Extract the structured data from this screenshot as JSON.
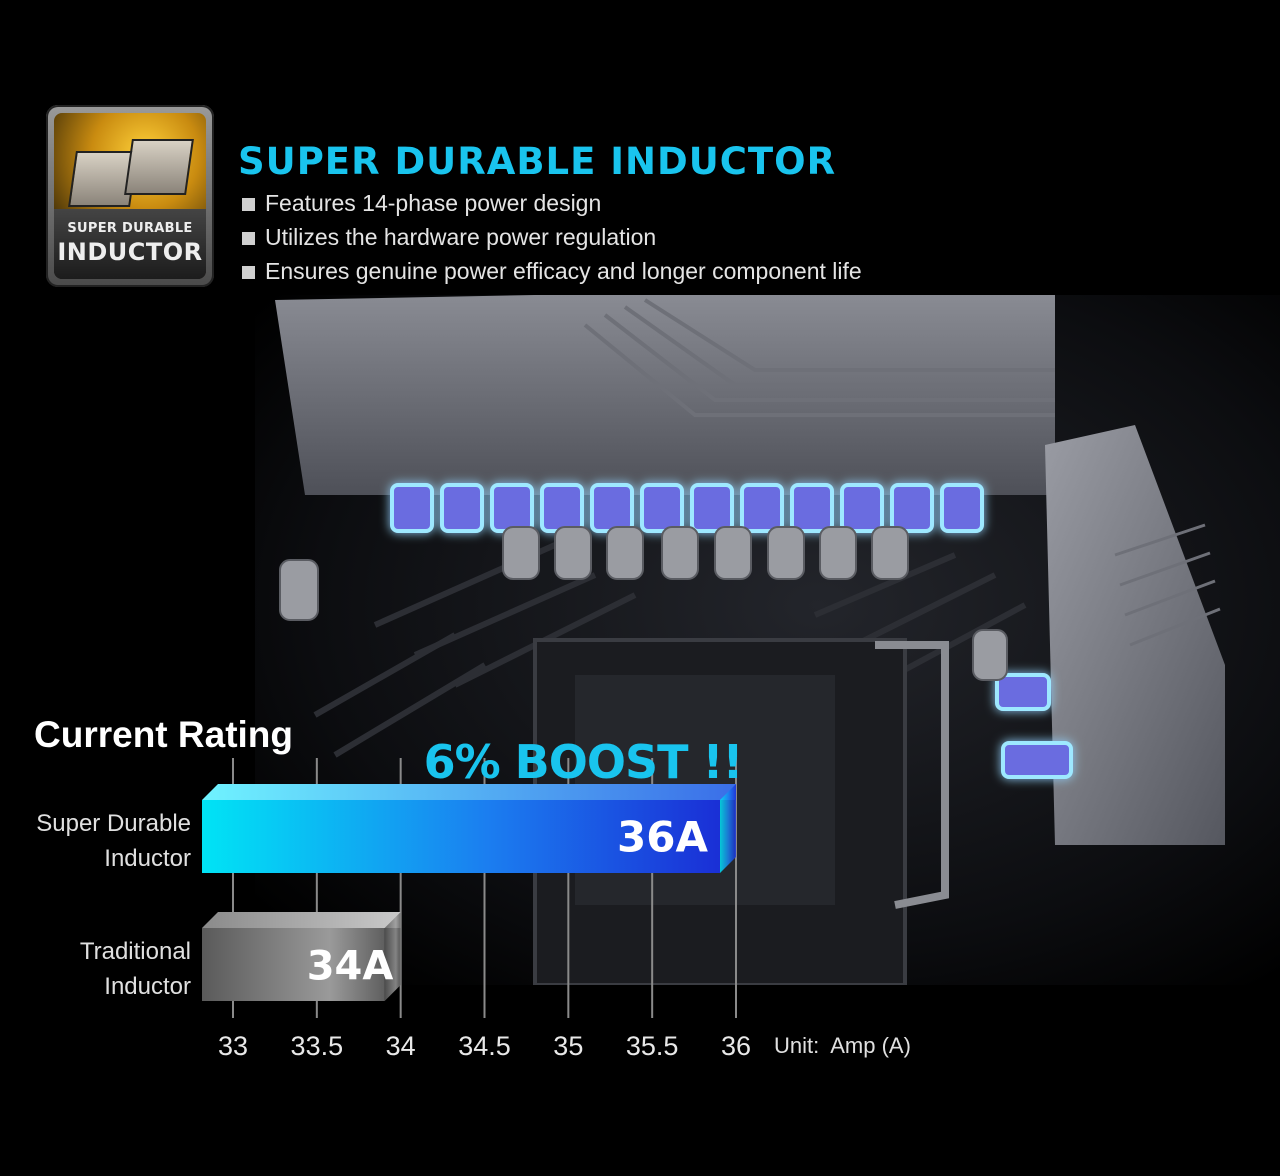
{
  "badge": {
    "line1": "SUPER DURABLE",
    "line2": "INDUCTOR"
  },
  "header": {
    "title": "SUPER DURABLE INDUCTOR",
    "features": [
      "Features 14-phase power design",
      "Utilizes the hardware power regulation",
      "Ensures genuine power efficacy and longer component life"
    ]
  },
  "colors": {
    "accent": "#19c4ee",
    "bar_primary": "#1b4fe0",
    "bar_secondary": "#8a8a8a"
  },
  "chart_data": {
    "type": "bar",
    "orientation": "horizontal",
    "title": "Current Rating",
    "categories": [
      "Super Durable Inductor",
      "Traditional Inductor"
    ],
    "category_lines": [
      [
        "Super Durable",
        "Inductor"
      ],
      [
        "Traditional",
        "Inductor"
      ]
    ],
    "values": [
      36,
      34
    ],
    "data_labels": [
      "36A",
      "34A"
    ],
    "xlim": [
      33,
      36
    ],
    "xticks": [
      33,
      33.5,
      34,
      34.5,
      35,
      35.5,
      36
    ],
    "xtick_labels": [
      "33",
      "33.5",
      "34",
      "34.5",
      "35",
      "35.5",
      "36"
    ],
    "unit_label": "Unit:  Amp (A)",
    "annotation": "6% BOOST !!",
    "grid": "vertical"
  }
}
